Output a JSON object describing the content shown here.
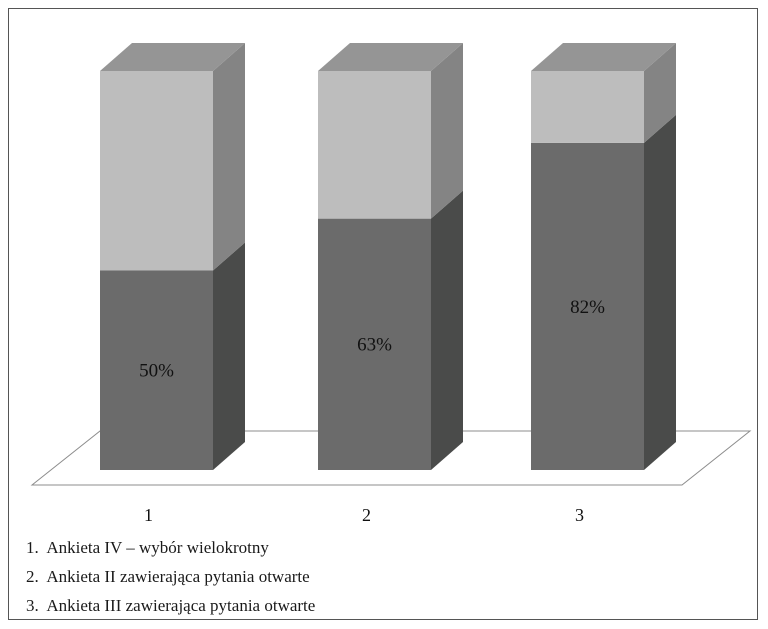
{
  "chart_data": {
    "type": "bar",
    "stacked_3d": true,
    "categories": [
      "1",
      "2",
      "3"
    ],
    "series": [
      {
        "values": [
          50,
          63,
          82
        ],
        "color": "#6b6b6b"
      },
      {
        "values": [
          50,
          37,
          18
        ],
        "color": "#bdbdbd"
      }
    ],
    "data_labels": [
      "50%",
      "63%",
      "82%"
    ],
    "ylim": [
      0,
      100
    ],
    "title": "",
    "xlabel": "",
    "ylabel": "",
    "grid": false,
    "colors": {
      "lower_front": "#6b6b6b",
      "lower_side": "#4a4b4a",
      "upper_front": "#bdbdbd",
      "upper_side": "#848484",
      "top": "#959595"
    }
  },
  "legend": {
    "items": [
      {
        "number": "1.",
        "text": "Ankieta IV – wybór wielokrotny"
      },
      {
        "number": "2.",
        "text": "Ankieta II zawierająca pytania otwarte"
      },
      {
        "number": "3.",
        "text": "Ankieta III zawierająca pytania otwarte"
      }
    ]
  }
}
